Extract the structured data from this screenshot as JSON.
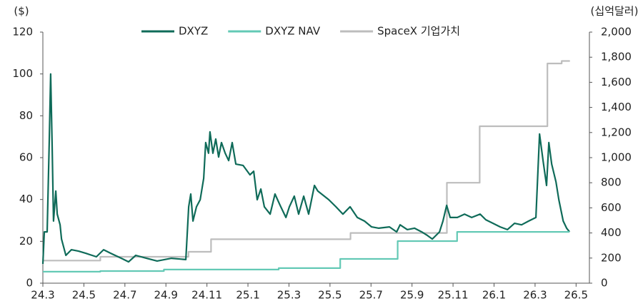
{
  "chart_data": {
    "type": "line",
    "y_label": "($)",
    "y2_label": "(십억달러)",
    "xlim": [
      0,
      26.65
    ],
    "xticks": [
      {
        "value": 0,
        "label": "24.3"
      },
      {
        "value": 2,
        "label": "24.5"
      },
      {
        "value": 4,
        "label": "24.7"
      },
      {
        "value": 6,
        "label": "24.9"
      },
      {
        "value": 8,
        "label": "24.11"
      },
      {
        "value": 10,
        "label": "25.1"
      },
      {
        "value": 12,
        "label": "25.3"
      },
      {
        "value": 14,
        "label": "25.5"
      },
      {
        "value": 16,
        "label": "25.7"
      },
      {
        "value": 18,
        "label": "25.9"
      },
      {
        "value": 20,
        "label": "25.11"
      },
      {
        "value": 22,
        "label": "26.1"
      },
      {
        "value": 24,
        "label": "26.3"
      },
      {
        "value": 26,
        "label": "26.5"
      }
    ],
    "ylim": [
      0,
      120
    ],
    "yticks": [
      0,
      20,
      40,
      60,
      80,
      100,
      120
    ],
    "y2lim": [
      0,
      2000
    ],
    "y2ticks": [
      0,
      200,
      400,
      600,
      800,
      {
        "value": 1000,
        "label": "1,000"
      },
      {
        "value": 1200,
        "label": "1,200"
      },
      {
        "value": 1400,
        "label": "1,400"
      },
      {
        "value": 1600,
        "label": "1,600"
      },
      {
        "value": 1800,
        "label": "1,800"
      },
      {
        "value": 2000,
        "label": "2,000"
      }
    ],
    "legend": "top",
    "series": [
      {
        "name": "DXYZ",
        "color": "#0f6b59",
        "x": [
          0,
          0.07,
          0.21,
          0.31,
          0.38,
          0.45,
          0.52,
          0.63,
          0.7,
          0.84,
          0.91,
          1.12,
          1.39,
          1.74,
          2.09,
          2.61,
          2.96,
          3.31,
          3.83,
          4.18,
          4.53,
          5.05,
          5.57,
          6.27,
          6.97,
          7.11,
          7.21,
          7.32,
          7.49,
          7.67,
          7.84,
          7.94,
          8.08,
          8.15,
          8.29,
          8.43,
          8.57,
          8.71,
          8.89,
          9.06,
          9.23,
          9.41,
          9.76,
          10.1,
          10.28,
          10.45,
          10.63,
          10.8,
          11.08,
          11.32,
          11.57,
          11.85,
          12.02,
          12.26,
          12.47,
          12.72,
          12.96,
          13.24,
          13.41,
          13.59,
          13.94,
          14.29,
          14.63,
          14.98,
          15.33,
          15.68,
          16.03,
          16.38,
          16.9,
          17.25,
          17.42,
          17.77,
          18.12,
          18.47,
          18.75,
          18.99,
          19.34,
          19.51,
          19.69,
          19.86,
          20.21,
          20.56,
          20.91,
          21.32,
          21.6,
          21.95,
          22.3,
          22.65,
          23.0,
          23.34,
          23.69,
          24.04,
          24.22,
          24.39,
          24.56,
          24.67,
          24.81,
          25.02,
          25.16,
          25.37,
          25.54,
          25.68
        ],
        "values": [
          9.2,
          24.5,
          24.5,
          67.2,
          100,
          67.2,
          29.7,
          44,
          33,
          27.9,
          21.1,
          13.3,
          16,
          15.3,
          14.3,
          12.6,
          16,
          14.3,
          11.9,
          10.2,
          13.3,
          11.9,
          10.6,
          11.9,
          11.3,
          36.5,
          42.6,
          29.7,
          36.5,
          39.9,
          50.1,
          67.2,
          62.1,
          72.3,
          62.1,
          68.9,
          60.3,
          67.2,
          62.1,
          58.6,
          67.2,
          56.9,
          56.3,
          51.8,
          53.5,
          39.9,
          45,
          36.5,
          33,
          42.6,
          37.2,
          31.4,
          36.5,
          41.6,
          33,
          41.6,
          33,
          46.7,
          44,
          42.6,
          39.9,
          36.5,
          33,
          36.5,
          31.4,
          29.7,
          26.9,
          26.3,
          26.9,
          24.5,
          27.9,
          25.6,
          26.3,
          24.5,
          22.8,
          21.1,
          24.5,
          29.7,
          37.2,
          31.4,
          31.4,
          33,
          31.4,
          33,
          30.3,
          28.6,
          26.9,
          25.6,
          28.6,
          27.9,
          29.7,
          31.4,
          71.3,
          58.6,
          46.7,
          67.2,
          56.9,
          48.4,
          39.9,
          29.7,
          26.3,
          24.5
        ]
      },
      {
        "name": "DXYZ NAV",
        "color": "#63c9b5",
        "x": [
          0,
          2.8,
          2.8,
          5.9,
          5.9,
          11.5,
          11.5,
          14.5,
          14.5,
          17.3,
          17.3,
          20.2,
          20.2,
          25.68
        ],
        "values": [
          5.5,
          5.5,
          5.8,
          5.8,
          6.5,
          6.5,
          7.2,
          7.2,
          11.6,
          11.6,
          20.1,
          20.1,
          24.5,
          24.5
        ]
      },
      {
        "name": "SpaceX 기업가치",
        "color": "#bdbdbd",
        "axis": "y2",
        "x": [
          0,
          2.8,
          2.8,
          7.1,
          7.1,
          8.2,
          8.2,
          15,
          15,
          19.7,
          19.7,
          21.3,
          21.3,
          24.6,
          24.6,
          25.3,
          25.3,
          25.7
        ],
        "values": [
          180,
          180,
          210,
          210,
          250,
          250,
          350,
          350,
          400,
          400,
          800,
          800,
          1250,
          1250,
          1750,
          1750,
          1770,
          1770
        ]
      }
    ]
  }
}
